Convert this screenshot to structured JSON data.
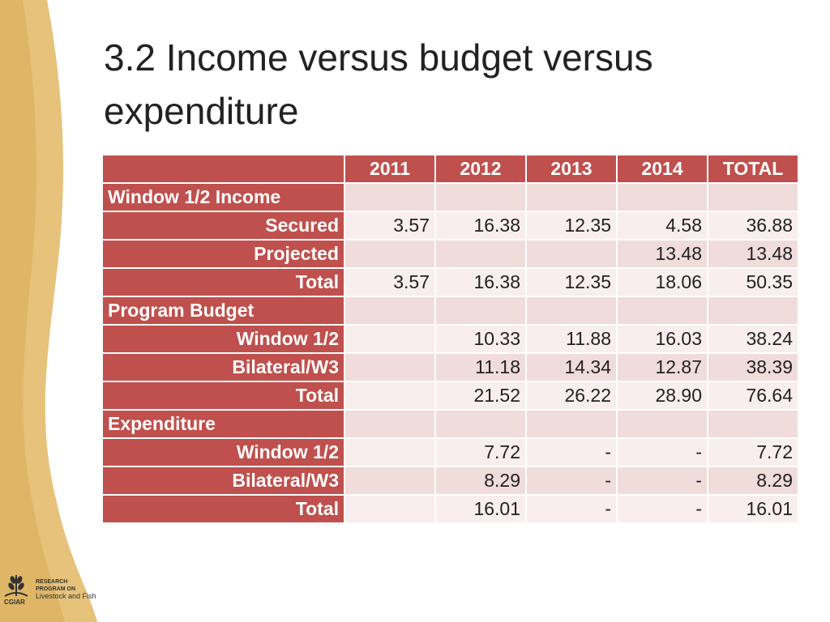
{
  "slide": {
    "title": "3.2 Income versus budget versus expenditure"
  },
  "table": {
    "headers": [
      "2011",
      "2012",
      "2013",
      "2014",
      "TOTAL"
    ],
    "rows": [
      {
        "label": "Window 1/2 Income",
        "section": true,
        "values": [
          "",
          "",
          "",
          "",
          ""
        ]
      },
      {
        "label": "Secured",
        "section": false,
        "values": [
          "3.57",
          "16.38",
          "12.35",
          "4.58",
          "36.88"
        ]
      },
      {
        "label": "Projected",
        "section": false,
        "values": [
          "",
          "",
          "",
          "13.48",
          "13.48"
        ]
      },
      {
        "label": "Total",
        "section": false,
        "values": [
          "3.57",
          "16.38",
          "12.35",
          "18.06",
          "50.35"
        ]
      },
      {
        "label": "Program Budget",
        "section": true,
        "values": [
          "",
          "",
          "",
          "",
          ""
        ]
      },
      {
        "label": "Window 1/2",
        "section": false,
        "values": [
          "",
          "10.33",
          "11.88",
          "16.03",
          "38.24"
        ]
      },
      {
        "label": "Bilateral/W3",
        "section": false,
        "values": [
          "",
          "11.18",
          "14.34",
          "12.87",
          "38.39"
        ]
      },
      {
        "label": "Total",
        "section": false,
        "values": [
          "",
          "21.52",
          "26.22",
          "28.90",
          "76.64"
        ]
      },
      {
        "label": "Expenditure",
        "section": true,
        "values": [
          "",
          "",
          "",
          "",
          ""
        ]
      },
      {
        "label": "Window 1/2",
        "section": false,
        "values": [
          "",
          "7.72",
          "-",
          "-",
          "7.72"
        ]
      },
      {
        "label": "Bilateral/W3",
        "section": false,
        "values": [
          "",
          "8.29",
          "-",
          "-",
          "8.29"
        ]
      },
      {
        "label": "Total",
        "section": false,
        "values": [
          "",
          "16.01",
          "-",
          "-",
          "16.01"
        ]
      }
    ]
  },
  "logo": {
    "line1": "RESEARCH",
    "line2": "PROGRAM ON",
    "line3": "Livestock and Fish",
    "caption": "CGIAR",
    "icon": "cgiar-wheat-logo-icon"
  },
  "colors": {
    "header": "#c0504d",
    "row_alt": "#efdcdb",
    "row_norm": "#f7eeed",
    "wave": "#e6c27a"
  }
}
